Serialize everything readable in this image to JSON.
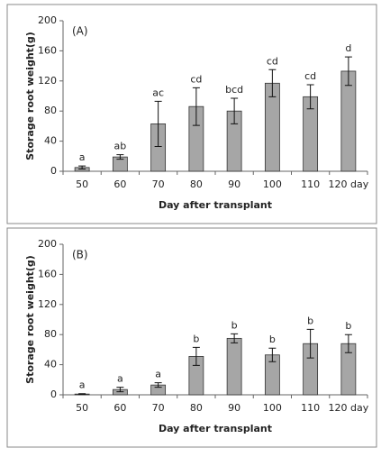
{
  "chart_data": [
    {
      "type": "bar",
      "title": "(A)",
      "y_label": "Storage root weight(g)",
      "x_label": "Day after transplant",
      "categories": [
        "50",
        "60",
        "70",
        "80",
        "90",
        "100",
        "110",
        "120 day"
      ],
      "values": [
        5,
        19,
        63,
        86,
        80,
        117,
        99,
        133
      ],
      "errors": [
        2,
        3,
        30,
        25,
        17,
        18,
        16,
        19
      ],
      "significance": [
        "a",
        "ab",
        "ac",
        "cd",
        "bcd",
        "cd",
        "cd",
        "d"
      ],
      "color": "#a6a6a6",
      "ylim": [
        0,
        200
      ],
      "yticks": [
        0,
        40,
        80,
        120,
        160,
        200
      ],
      "grid": false
    },
    {
      "type": "bar",
      "title": "(B)",
      "y_label": "Storage root weight(g)",
      "x_label": "Day after transplant",
      "categories": [
        "50",
        "60",
        "70",
        "80",
        "90",
        "100",
        "110",
        "120 day"
      ],
      "values": [
        1,
        7,
        13,
        51,
        75,
        53,
        68,
        68
      ],
      "errors": [
        0.5,
        3,
        3,
        12,
        6,
        9,
        19,
        12
      ],
      "significance": [
        "a",
        "a",
        "a",
        "b",
        "b",
        "b",
        "b",
        "b"
      ],
      "color": "#a6a6a6",
      "ylim": [
        0,
        200
      ],
      "yticks": [
        0,
        40,
        80,
        120,
        160,
        200
      ],
      "grid": false
    }
  ]
}
